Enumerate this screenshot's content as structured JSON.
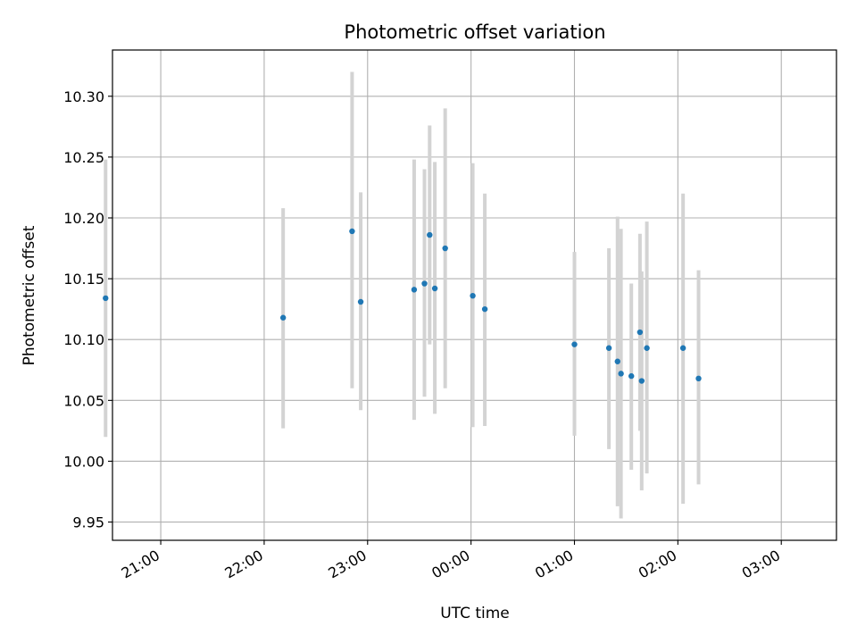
{
  "chart_data": {
    "type": "scatter",
    "title": "Photometric offset variation",
    "xlabel": "UTC time",
    "ylabel": "Photometric offset",
    "grid": true,
    "legend": "none",
    "x_unit": "UTC hours (values past midnight continue beyond 24:00)",
    "xlim": [
      "20:32",
      "03:32"
    ],
    "ylim": [
      9.935,
      10.338
    ],
    "x_ticks": [
      "21:00",
      "22:00",
      "23:00",
      "00:00",
      "01:00",
      "02:00",
      "03:00"
    ],
    "y_ticks": [
      "9.95",
      "10.00",
      "10.05",
      "10.10",
      "10.15",
      "10.20",
      "10.25",
      "10.30"
    ],
    "marker_color": "#1f77b4",
    "errorbar_color": "#d3d3d3",
    "points": [
      {
        "x": "20:28",
        "y": 10.134,
        "err_low": 10.02,
        "err_high": 10.248
      },
      {
        "x": "22:11",
        "y": 10.118,
        "err_low": 10.027,
        "err_high": 10.208
      },
      {
        "x": "22:51",
        "y": 10.189,
        "err_low": 10.06,
        "err_high": 10.32
      },
      {
        "x": "22:56",
        "y": 10.131,
        "err_low": 10.042,
        "err_high": 10.221
      },
      {
        "x": "23:27",
        "y": 10.141,
        "err_low": 10.034,
        "err_high": 10.248
      },
      {
        "x": "23:33",
        "y": 10.146,
        "err_low": 10.053,
        "err_high": 10.24
      },
      {
        "x": "23:36",
        "y": 10.186,
        "err_low": 10.096,
        "err_high": 10.276
      },
      {
        "x": "23:39",
        "y": 10.142,
        "err_low": 10.039,
        "err_high": 10.246
      },
      {
        "x": "23:45",
        "y": 10.175,
        "err_low": 10.06,
        "err_high": 10.29
      },
      {
        "x": "00:01",
        "y": 10.136,
        "err_low": 10.028,
        "err_high": 10.245
      },
      {
        "x": "00:08",
        "y": 10.125,
        "err_low": 10.029,
        "err_high": 10.22
      },
      {
        "x": "01:00",
        "y": 10.096,
        "err_low": 10.021,
        "err_high": 10.172
      },
      {
        "x": "01:20",
        "y": 10.093,
        "err_low": 10.01,
        "err_high": 10.175
      },
      {
        "x": "01:25",
        "y": 10.082,
        "err_low": 9.963,
        "err_high": 10.201
      },
      {
        "x": "01:27",
        "y": 10.072,
        "err_low": 9.953,
        "err_high": 10.191
      },
      {
        "x": "01:33",
        "y": 10.07,
        "err_low": 9.993,
        "err_high": 10.146
      },
      {
        "x": "01:38",
        "y": 10.106,
        "err_low": 10.025,
        "err_high": 10.187
      },
      {
        "x": "01:39",
        "y": 10.066,
        "err_low": 9.976,
        "err_high": 10.156
      },
      {
        "x": "01:42",
        "y": 10.093,
        "err_low": 9.99,
        "err_high": 10.197
      },
      {
        "x": "02:03",
        "y": 10.093,
        "err_low": 9.965,
        "err_high": 10.22
      },
      {
        "x": "02:12",
        "y": 10.068,
        "err_low": 9.981,
        "err_high": 10.157
      }
    ]
  }
}
